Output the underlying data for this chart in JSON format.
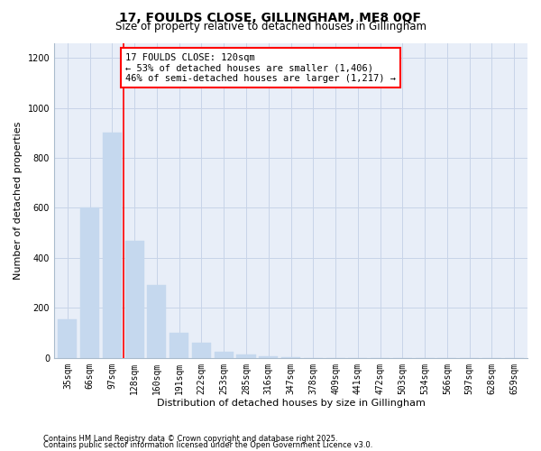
{
  "title": "17, FOULDS CLOSE, GILLINGHAM, ME8 0QF",
  "subtitle": "Size of property relative to detached houses in Gillingham",
  "xlabel": "Distribution of detached houses by size in Gillingham",
  "ylabel": "Number of detached properties",
  "bar_values": [
    155,
    600,
    900,
    470,
    290,
    100,
    60,
    25,
    15,
    8,
    3,
    0,
    0,
    0,
    0,
    0,
    0,
    0,
    0,
    0,
    0
  ],
  "categories": [
    "35sqm",
    "66sqm",
    "97sqm",
    "128sqm",
    "160sqm",
    "191sqm",
    "222sqm",
    "253sqm",
    "285sqm",
    "316sqm",
    "347sqm",
    "378sqm",
    "409sqm",
    "441sqm",
    "472sqm",
    "503sqm",
    "534sqm",
    "566sqm",
    "597sqm",
    "628sqm",
    "659sqm"
  ],
  "bar_color": "#c5d8ee",
  "bar_edge_color": "#c5d8ee",
  "annotation_text": "17 FOULDS CLOSE: 120sqm\n← 53% of detached houses are smaller (1,406)\n46% of semi-detached houses are larger (1,217) →",
  "vline_x": 2.5,
  "vline_color": "red",
  "annotation_box_color": "white",
  "annotation_box_edge_color": "red",
  "ylim": [
    0,
    1260
  ],
  "yticks": [
    0,
    200,
    400,
    600,
    800,
    1000,
    1200
  ],
  "grid_color": "#c8d4e8",
  "footnote1": "Contains HM Land Registry data © Crown copyright and database right 2025.",
  "footnote2": "Contains public sector information licensed under the Open Government Licence v3.0.",
  "background_color": "#e8eef8",
  "fig_background": "#ffffff",
  "title_fontsize": 10,
  "subtitle_fontsize": 8.5,
  "axis_label_fontsize": 8,
  "tick_fontsize": 7,
  "footnote_fontsize": 6,
  "annotation_fontsize": 7.5
}
